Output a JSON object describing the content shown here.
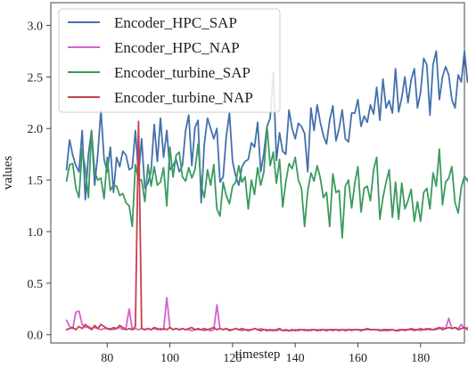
{
  "chart_data": {
    "type": "line",
    "xlabel": "timestep",
    "ylabel": "values",
    "xlim": [
      62,
      194
    ],
    "ylim": [
      -0.08,
      3.22
    ],
    "x_ticks": [
      80,
      100,
      120,
      140,
      160,
      180
    ],
    "y_ticks": [
      0.0,
      0.5,
      1.0,
      1.5,
      2.0,
      2.5,
      3.0
    ],
    "x_tick_labels": [
      "80",
      "100",
      "120",
      "140",
      "160",
      "180"
    ],
    "y_tick_labels": [
      "0.0",
      "0.5",
      "1.0",
      "1.5",
      "2.0",
      "2.5",
      "3.0"
    ],
    "grid": false,
    "legend_position": "top-left",
    "x_start": 67,
    "x_step": 1,
    "series": [
      {
        "name": "Encoder_HPC_SAP",
        "color": "#4470ad",
        "values": [
          1.6,
          1.89,
          1.74,
          1.64,
          1.58,
          1.98,
          1.31,
          1.75,
          1.98,
          1.45,
          1.75,
          2.18,
          1.7,
          1.58,
          1.82,
          1.38,
          1.72,
          1.63,
          1.78,
          1.74,
          1.6,
          1.62,
          1.98,
          1.55,
          1.9,
          1.42,
          1.47,
          1.59,
          2.04,
          1.68,
          2.1,
          1.72,
          1.98,
          1.6,
          1.64,
          1.7,
          1.58,
          1.64,
          1.98,
          2.13,
          1.64,
          2.01,
          2.08,
          1.28,
          1.85,
          2.1,
          2.0,
          1.9,
          2.0,
          1.48,
          1.53,
          1.92,
          2.15,
          1.68,
          1.54,
          1.45,
          1.63,
          1.68,
          1.7,
          1.86,
          1.82,
          2.06,
          1.58,
          1.76,
          2.02,
          2.1,
          2.55,
          1.69,
          1.96,
          1.78,
          1.75,
          2.18,
          2.0,
          1.9,
          2.05,
          2.02,
          1.95,
          1.58,
          2.2,
          1.98,
          2.23,
          2.06,
          1.93,
          1.85,
          2.08,
          2.22,
          1.88,
          2.0,
          2.18,
          1.9,
          1.87,
          2.15,
          2.15,
          2.28,
          2.02,
          2.12,
          2.06,
          2.23,
          2.14,
          2.4,
          2.08,
          2.48,
          2.2,
          2.27,
          2.15,
          2.58,
          2.16,
          2.3,
          2.5,
          2.25,
          2.47,
          2.58,
          2.2,
          2.35,
          2.68,
          2.62,
          2.13,
          2.62,
          2.75,
          2.28,
          2.5,
          2.6,
          2.52,
          2.28,
          2.2,
          2.52,
          2.45,
          2.75,
          2.45,
          2.6,
          2.72,
          2.55,
          2.63,
          2.83,
          2.85,
          2.45,
          2.5,
          2.63,
          2.73,
          2.6,
          2.8,
          2.75,
          2.72,
          2.78,
          2.68,
          2.85,
          2.75,
          2.62,
          2.6,
          2.55,
          2.65,
          2.63,
          2.72,
          2.72,
          2.78,
          2.62,
          2.5,
          3.06,
          2.82,
          2.98
        ]
      },
      {
        "name": "Encoder_HPC_NAP",
        "color": "#d165cf",
        "values": [
          0.14,
          0.08,
          0.06,
          0.22,
          0.23,
          0.1,
          0.07,
          0.08,
          0.06,
          0.07,
          0.06,
          0.05,
          0.06,
          0.06,
          0.06,
          0.05,
          0.06,
          0.07,
          0.05,
          0.07,
          0.25,
          0.05,
          0.06,
          0.05,
          0.06,
          0.05,
          0.06,
          0.05,
          0.06,
          0.05,
          0.06,
          0.05,
          0.36,
          0.07,
          0.05,
          0.06,
          0.05,
          0.06,
          0.05,
          0.05,
          0.04,
          0.05,
          0.05,
          0.05,
          0.04,
          0.05,
          0.04,
          0.05,
          0.29,
          0.06,
          0.05,
          0.06,
          0.05,
          0.05,
          0.06,
          0.05,
          0.04,
          0.05,
          0.05,
          0.05,
          0.06,
          0.05,
          0.06,
          0.05,
          0.05,
          0.04,
          0.05,
          0.04,
          0.05,
          0.04,
          0.04,
          0.04,
          0.04,
          0.05,
          0.04,
          0.05,
          0.04,
          0.05,
          0.04,
          0.05,
          0.05,
          0.04,
          0.05,
          0.05,
          0.05,
          0.04,
          0.05,
          0.05,
          0.05,
          0.05,
          0.05,
          0.04,
          0.05,
          0.05,
          0.05,
          0.05,
          0.05,
          0.05,
          0.05,
          0.05,
          0.05,
          0.04,
          0.04,
          0.04,
          0.05,
          0.04,
          0.05,
          0.05,
          0.04,
          0.05,
          0.05,
          0.04,
          0.05,
          0.04,
          0.05,
          0.05,
          0.06,
          0.05,
          0.05,
          0.06,
          0.07,
          0.06,
          0.16,
          0.06,
          0.07,
          0.06,
          0.1,
          0.06,
          0.07,
          0.05,
          0.06,
          0.06,
          0.07,
          0.06,
          0.07,
          0.06,
          0.08,
          0.08,
          0.16,
          0.06,
          0.08,
          0.06,
          0.07,
          0.08,
          0.1,
          0.07,
          0.08,
          0.07,
          0.1,
          0.09,
          0.2,
          0.22,
          0.11,
          0.08,
          0.1,
          0.12,
          0.15,
          0.2,
          0.28,
          0.06,
          0.08,
          0.12,
          0.18,
          0.2,
          0.13,
          0.08,
          0.12,
          2.54,
          0.2,
          0.21
        ]
      },
      {
        "name": "Encoder_turbine_SAP",
        "color": "#3b9a5f",
        "values": [
          1.49,
          1.65,
          1.66,
          1.42,
          1.33,
          1.8,
          1.61,
          1.33,
          1.98,
          1.58,
          1.5,
          1.52,
          1.32,
          1.72,
          1.4,
          1.45,
          1.44,
          1.35,
          1.37,
          1.28,
          1.25,
          1.05,
          1.65,
          1.5,
          1.5,
          1.29,
          1.65,
          1.44,
          1.63,
          1.45,
          1.48,
          1.62,
          1.25,
          1.82,
          1.53,
          1.74,
          1.77,
          1.53,
          1.49,
          1.62,
          1.52,
          1.6,
          1.85,
          1.45,
          1.33,
          1.6,
          1.45,
          1.65,
          1.22,
          1.15,
          1.48,
          1.35,
          1.27,
          1.44,
          1.48,
          1.64,
          1.48,
          1.53,
          1.22,
          1.5,
          1.36,
          1.62,
          1.45,
          1.58,
          2.02,
          1.64,
          1.77,
          1.47,
          1.7,
          1.24,
          1.48,
          1.66,
          1.61,
          1.72,
          1.5,
          1.42,
          1.05,
          1.39,
          1.57,
          1.49,
          1.64,
          1.52,
          1.33,
          1.38,
          1.05,
          1.56,
          1.38,
          1.4,
          0.94,
          1.44,
          1.5,
          1.23,
          1.47,
          1.63,
          1.19,
          1.42,
          1.44,
          1.3,
          1.6,
          1.72,
          1.12,
          1.33,
          1.48,
          1.6,
          1.14,
          1.48,
          1.12,
          1.47,
          1.22,
          1.3,
          1.41,
          1.1,
          1.29,
          1.1,
          1.38,
          1.42,
          1.22,
          1.57,
          1.44,
          1.8,
          1.26,
          1.48,
          1.52,
          1.63,
          1.28,
          1.18,
          1.43,
          1.54,
          1.49,
          1.58,
          1.42,
          1.38,
          1.58,
          1.47,
          1.11,
          1.41,
          1.23,
          1.28,
          1.17,
          1.05,
          0.9,
          1.14,
          1.28,
          1.25,
          1.3,
          1.12,
          1.32,
          1.18,
          1.38,
          1.2,
          1.05,
          1.12,
          1.3,
          1.22,
          1.27,
          1.28,
          1.38,
          1.38,
          1.4,
          1.18,
          1.08,
          1.35,
          1.05,
          1.24,
          1.4,
          1.2,
          1.12,
          1.06,
          1.32,
          1.22,
          1.08,
          1.15,
          1.12,
          1.32,
          1.2,
          1.35,
          1.22,
          1.32,
          1.23,
          1.19,
          1.28,
          1.1,
          1.05,
          1.18,
          1.15,
          1.2,
          1.12,
          1.27,
          1.3,
          1.18,
          1.1,
          1.06,
          1.32,
          1.12,
          1.05,
          0.94,
          1.3,
          1.12,
          1.2,
          0.98,
          1.28,
          1.27,
          1.23,
          1.18,
          1.28,
          1.12,
          0.97,
          1.08,
          1.15,
          0.99,
          1.28,
          1.18,
          1.23,
          1.2,
          1.28,
          1.21,
          1.12,
          1.22,
          1.05,
          1.15,
          1.3,
          1.19,
          1.22,
          1.1
        ]
      },
      {
        "name": "Encoder_turbine_NAP",
        "color": "#c5414d",
        "values": [
          0.05,
          0.06,
          0.07,
          0.05,
          0.08,
          0.06,
          0.1,
          0.07,
          0.05,
          0.09,
          0.06,
          0.1,
          0.08,
          0.06,
          0.05,
          0.07,
          0.06,
          0.09,
          0.07,
          0.05,
          0.06,
          0.05,
          0.08,
          2.07,
          0.06,
          0.05,
          0.06,
          0.05,
          0.07,
          0.06,
          0.05,
          0.06,
          0.05,
          0.07,
          0.05,
          0.06,
          0.05,
          0.06,
          0.05,
          0.06,
          0.07,
          0.05,
          0.06,
          0.05,
          0.06,
          0.05,
          0.06,
          0.07,
          0.05,
          0.06,
          0.05,
          0.06,
          0.04,
          0.05,
          0.06,
          0.05,
          0.06,
          0.05,
          0.04,
          0.05,
          0.06,
          0.05,
          0.04,
          0.05,
          0.04,
          0.05,
          0.04,
          0.05,
          0.06,
          0.04,
          0.05,
          0.04,
          0.05,
          0.04,
          0.05,
          0.05,
          0.05,
          0.04,
          0.05,
          0.05,
          0.04,
          0.05,
          0.05,
          0.04,
          0.05,
          0.05,
          0.05,
          0.04,
          0.05,
          0.04,
          0.05,
          0.05,
          0.05,
          0.05,
          0.04,
          0.05,
          0.06,
          0.05,
          0.05,
          0.05,
          0.04,
          0.05,
          0.05,
          0.05,
          0.05,
          0.04,
          0.04,
          0.05,
          0.05,
          0.05,
          0.06,
          0.05,
          0.05,
          0.06,
          0.05,
          0.06,
          0.05,
          0.05,
          0.06,
          0.07,
          0.05,
          0.06,
          0.07,
          0.06,
          0.07,
          0.05,
          0.06,
          0.07,
          0.05,
          0.06,
          0.05,
          0.06,
          0.06,
          0.05,
          0.07,
          0.06,
          0.05,
          0.06,
          0.07,
          0.06,
          0.05,
          0.06,
          0.07,
          0.06,
          0.05,
          0.06,
          0.07,
          0.08,
          0.05,
          0.06,
          0.08,
          0.06,
          0.1,
          0.15,
          0.08,
          0.1,
          0.16,
          0.12,
          0.08,
          0.1,
          0.93,
          0.12,
          0.08,
          0.1,
          0.14,
          0.18,
          0.25,
          0.1,
          0.12,
          0.14
        ]
      }
    ]
  }
}
